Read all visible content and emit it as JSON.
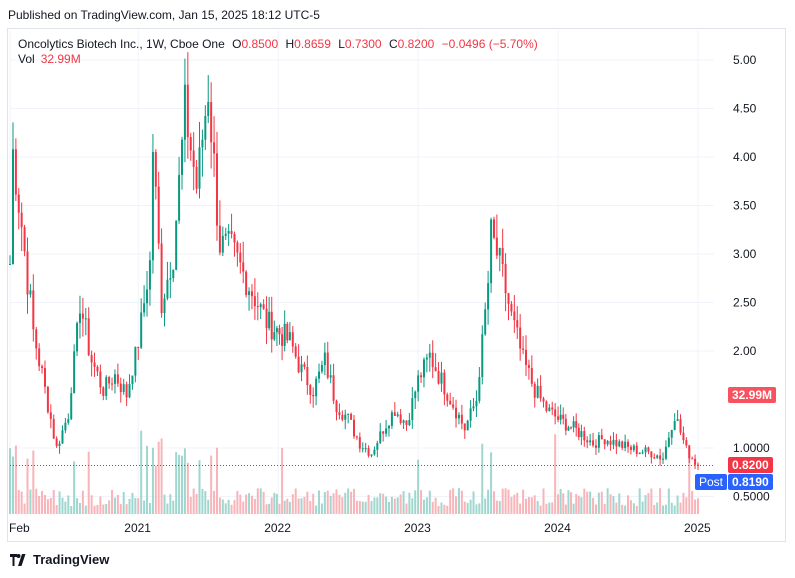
{
  "header": {
    "published": "Published on TradingView.com, Jan 15, 2025 18:12 UTC-5"
  },
  "legend": {
    "symbol": "Oncolytics Biotech Inc., 1W, Cboe One",
    "o_label": "O",
    "o": "0.8500",
    "h_label": "H",
    "h": "0.8659",
    "l_label": "L",
    "l": "0.7300",
    "c_label": "C",
    "c": "0.8200",
    "change": "−0.0496 (−5.70%)",
    "vol_label": "Vol",
    "vol": "32.99M"
  },
  "price_tags": {
    "volume": "32.99M",
    "last": "0.8200",
    "post_label": "Post",
    "post": "0.8190"
  },
  "footer": {
    "brand": "TradingView"
  },
  "colors": {
    "up": "#089981",
    "down": "#f23645",
    "vol_up": "#9fd7cf",
    "vol_down": "#f8b4b9",
    "grid": "#f0f3fa"
  },
  "chart_data": {
    "type": "candlestick",
    "interval": "1W",
    "y_ticks": [
      "5.00",
      "4.50",
      "4.00",
      "3.50",
      "3.00",
      "2.50",
      "2.00",
      "1.0000",
      "0.5000"
    ],
    "x_ticks": [
      "Feb",
      "2021",
      "2022",
      "2023",
      "2024",
      "2025"
    ],
    "ylim": [
      0.35,
      5.2
    ],
    "close_path": [
      [
        "2020-02",
        2.9
      ],
      [
        "2020-02",
        4.05
      ],
      [
        "2020-03",
        3.3
      ],
      [
        "2020-04",
        2.2
      ],
      [
        "2020-05",
        1.6
      ],
      [
        "2020-06",
        1.0
      ],
      [
        "2020-07",
        1.35
      ],
      [
        "2020-08",
        2.5
      ],
      [
        "2020-09",
        1.9
      ],
      [
        "2020-10",
        1.6
      ],
      [
        "2020-11",
        1.75
      ],
      [
        "2020-12",
        1.55
      ],
      [
        "2021-01",
        2.1
      ],
      [
        "2021-02",
        2.9
      ],
      [
        "2021-02",
        4.1
      ],
      [
        "2021-03",
        2.5
      ],
      [
        "2021-04",
        3.0
      ],
      [
        "2021-05",
        4.5
      ],
      [
        "2021-06",
        3.7
      ],
      [
        "2021-07",
        4.7
      ],
      [
        "2021-08",
        3.1
      ],
      [
        "2021-09",
        3.05
      ],
      [
        "2021-10",
        2.8
      ],
      [
        "2021-11",
        2.55
      ],
      [
        "2021-12",
        2.3
      ],
      [
        "2022-02",
        2.1
      ],
      [
        "2022-03",
        1.8
      ],
      [
        "2022-04",
        1.6
      ],
      [
        "2022-05",
        1.9
      ],
      [
        "2022-06",
        1.45
      ],
      [
        "2022-07",
        1.3
      ],
      [
        "2022-08",
        1.05
      ],
      [
        "2022-09",
        0.95
      ],
      [
        "2022-10",
        1.2
      ],
      [
        "2022-11",
        1.4
      ],
      [
        "2022-12",
        1.25
      ],
      [
        "2023-01",
        1.7
      ],
      [
        "2023-02",
        1.95
      ],
      [
        "2023-03",
        1.7
      ],
      [
        "2023-04",
        1.45
      ],
      [
        "2023-05",
        1.2
      ],
      [
        "2023-06",
        1.5
      ],
      [
        "2023-07",
        2.7
      ],
      [
        "2023-07",
        3.2
      ],
      [
        "2023-08",
        2.9
      ],
      [
        "2023-09",
        2.35
      ],
      [
        "2023-10",
        1.9
      ],
      [
        "2023-11",
        1.6
      ],
      [
        "2023-12",
        1.4
      ],
      [
        "2024-01",
        1.3
      ],
      [
        "2024-03",
        1.15
      ],
      [
        "2024-04",
        1.05
      ],
      [
        "2024-05",
        1.1
      ],
      [
        "2024-06",
        1.05
      ],
      [
        "2024-07",
        1.0
      ],
      [
        "2024-08",
        0.97
      ],
      [
        "2024-09",
        0.95
      ],
      [
        "2024-10",
        0.9
      ],
      [
        "2024-11",
        1.35
      ],
      [
        "2024-12",
        0.98
      ],
      [
        "2025-01",
        0.82
      ]
    ]
  }
}
